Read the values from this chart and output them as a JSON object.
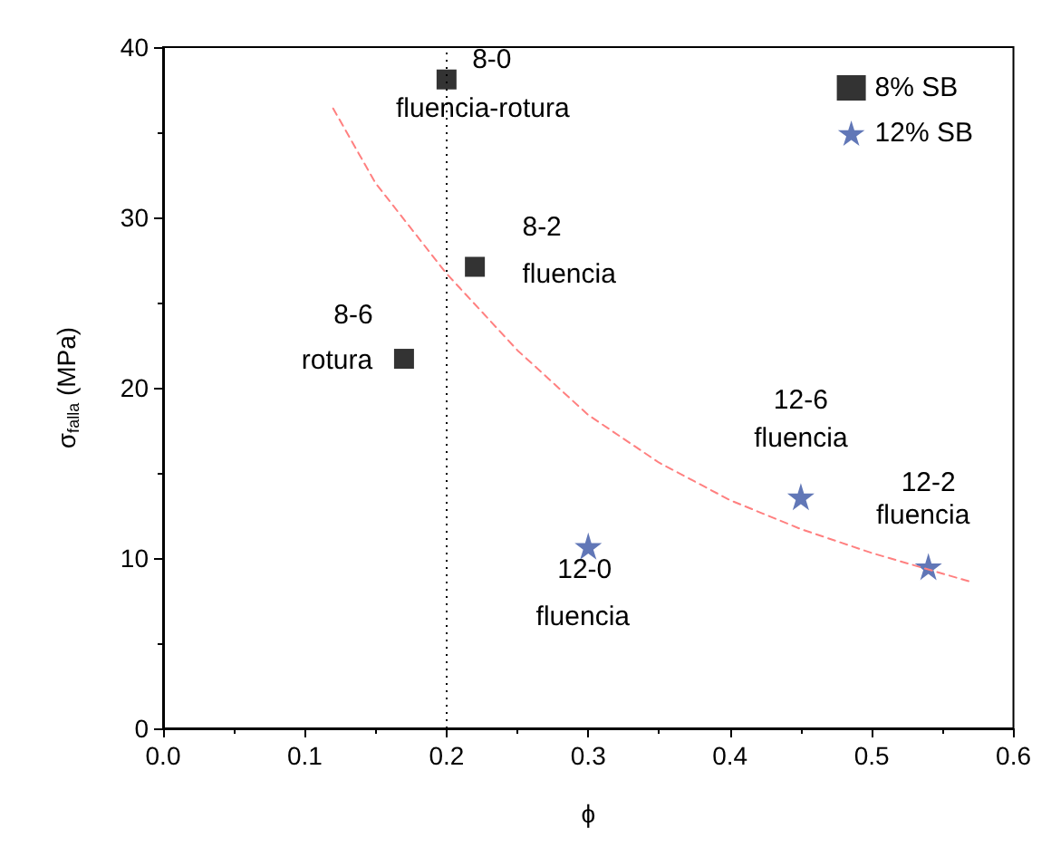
{
  "chart_data": {
    "type": "scatter",
    "xlabel": "ϕ",
    "ylabel": "σ$_{falla}$ (MPa)",
    "xlim": [
      0,
      0.6
    ],
    "ylim": [
      0,
      40
    ],
    "xticks": [
      {
        "value": 0,
        "label": "0.0"
      },
      {
        "value": 0.1,
        "label": "0.1"
      },
      {
        "value": 0.2,
        "label": "0.2"
      },
      {
        "value": 0.3,
        "label": "0.3"
      },
      {
        "value": 0.4,
        "label": "0.4"
      },
      {
        "value": 0.5,
        "label": "0.5"
      },
      {
        "value": 0.6,
        "label": "0.6"
      }
    ],
    "yticks": [
      0,
      10,
      20,
      30,
      40
    ],
    "grid": false,
    "legend": "top right",
    "series": [
      {
        "name": "8% SB",
        "color": "#000000",
        "marker": "square",
        "x": [
          0.2,
          0.22,
          0.17
        ],
        "values": [
          38.1,
          27.1,
          21.7
        ]
      },
      {
        "name": "12% SB",
        "color": "#3a55a5",
        "marker": "star",
        "x": [
          0.3,
          0.45,
          0.54
        ],
        "values": [
          10.7,
          13.6,
          9.5
        ]
      },
      {
        "type": "line",
        "color": "#ff8080",
        "line_style": "dashed",
        "marker": "none",
        "x": [
          0.12,
          0.15,
          0.2,
          0.25,
          0.3,
          0.35,
          0.4,
          0.45,
          0.5,
          0.57
        ],
        "values": [
          36.4,
          32.0,
          26.7,
          22.2,
          18.4,
          15.6,
          13.4,
          11.7,
          10.3,
          8.6
        ]
      }
    ],
    "ref_lines": [
      {
        "axis": "x",
        "value": 0.2,
        "color": "#000000",
        "line_style": "dotted"
      }
    ],
    "annotations": [
      {
        "text": "8-0",
        "x": 0.2,
        "y": 38.1
      },
      {
        "text": "fluencia-rotura",
        "x": 0.2,
        "y": 38.1
      },
      {
        "text": "8-2",
        "x": 0.22,
        "y": 27.1
      },
      {
        "text": "fluencia",
        "x": 0.22,
        "y": 27.1
      },
      {
        "text": "8-6",
        "x": 0.17,
        "y": 21.7
      },
      {
        "text": "rotura",
        "x": 0.17,
        "y": 21.7
      },
      {
        "text": "12-0",
        "x": 0.3,
        "y": 10.7
      },
      {
        "text": "fluencia",
        "x": 0.3,
        "y": 10.7
      },
      {
        "text": "12-6",
        "x": 0.45,
        "y": 13.6
      },
      {
        "text": "fluencia",
        "x": 0.45,
        "y": 13.6
      },
      {
        "text": "12-2",
        "x": 0.54,
        "y": 9.5
      },
      {
        "text": "fluencia",
        "x": 0.54,
        "y": 9.5
      }
    ]
  }
}
